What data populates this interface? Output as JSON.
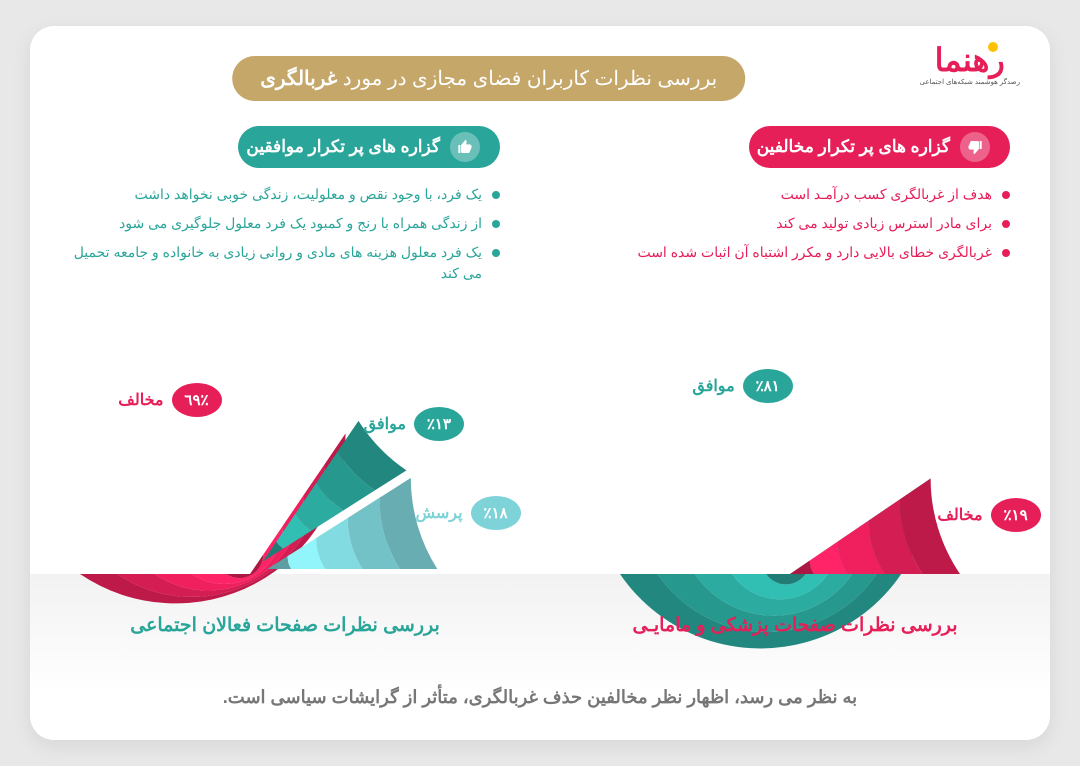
{
  "brand": {
    "name": "رهنما",
    "tagline": "رصدگر هوشمند شبکه‌های اجتماعی"
  },
  "title": {
    "prefix": "بررسی نظرات کاربران فضای مجازی در مورد",
    "highlight": "غربالگری"
  },
  "colors": {
    "agree": "#2aa59a",
    "disagree": "#e61f59",
    "question": "#7dd3d8",
    "ring_shades_agree": [
      "#1d8a80",
      "#239388",
      "#2aa59a",
      "#34b0a5"
    ],
    "ring_shades_disagree": [
      "#b4174a",
      "#cf1b53",
      "#e61f59",
      "#ef3d70"
    ],
    "pill_bg": "#c6a76a",
    "card_bg": "#ffffff",
    "page_bg": "#e8e8e8",
    "footer_text": "#777777"
  },
  "agree_section": {
    "heading": "گزاره های پر تکرار موافقین",
    "bullets": [
      "یک فرد، با وجود نقص و معلولیت، زندگی خوبی نخواهد داشت",
      "از زندگی همراه با رنج و کمبود یک فرد معلول جلوگیری می شود",
      "یک فرد معلول هزینه های مادی و روانی زیادی به خانواده و جامعه تحمیل می کند"
    ]
  },
  "disagree_section": {
    "heading": "گزاره های پر تکرار مخالفین",
    "bullets": [
      "هدف از غربالگری کسب درآمـد است",
      "برای مادر استرس زیادی تولید می کند",
      "غربالگری خطای بالایی دارد و مکرر اشتباه آن اثبات شده است"
    ]
  },
  "chart_right": {
    "title": "بررسی نظرات صفحات فعالان اجتماعی",
    "segments": [
      {
        "label": "موافق",
        "pct_text": "٪۸۱",
        "value": 81,
        "color": "#2aa59a"
      },
      {
        "label": "مخالف",
        "pct_text": "٪۱۹",
        "value": 19,
        "color": "#e61f59"
      }
    ]
  },
  "chart_left": {
    "title": "بررسی نظرات صفحات پزشکی و مامایـی",
    "segments": [
      {
        "label": "مخالف",
        "pct_text": "٪٦٩",
        "value": 69,
        "color": "#e61f59"
      },
      {
        "label": "موافق",
        "pct_text": "٪۱۳",
        "value": 13,
        "color": "#2aa59a"
      },
      {
        "label": "پرسش",
        "pct_text": "٪۱۸",
        "value": 18,
        "color": "#7dd3d8"
      }
    ]
  },
  "footer": "به نظر می رسد، اظهار نظر مخالفین حذف غربالگری، متأثر از گرایشات سیاسی است."
}
